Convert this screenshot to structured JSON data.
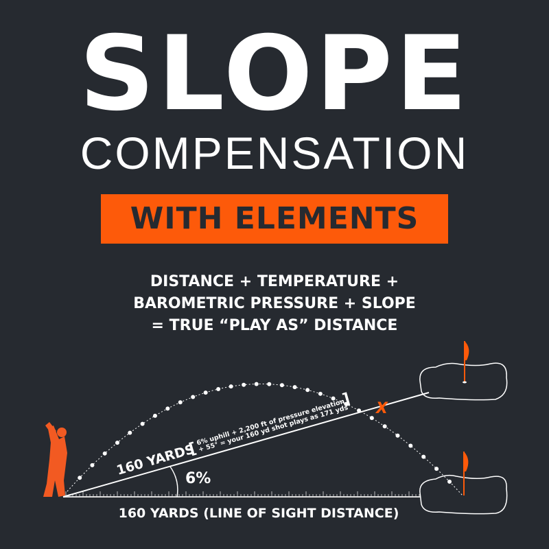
{
  "title": "SLOPE",
  "subtitle": "COMPENSATION",
  "banner": "WITH ELEMENTS",
  "formula": [
    "DISTANCE + TEMPERATURE +",
    "BAROMETRIC PRESSURE + SLOPE",
    "= TRUE “PLAY AS” DISTANCE"
  ],
  "diagram": {
    "slope_label": "160 YARDS",
    "note_line1": "6% uphill + 2,200 ft of pressure elevation",
    "note_line2": "+ 55° = your 160 yd shot plays as 171 yds",
    "angle_label": "6%",
    "base_label": "160 YARDS (LINE OF SIGHT DISTANCE)",
    "marker": "X",
    "icons": [
      "golfer-silhouette",
      "flag-icon",
      "green-outline"
    ]
  },
  "colors": {
    "background": "#262a30",
    "accent": "#fd5a0a",
    "text": "#ffffff"
  }
}
